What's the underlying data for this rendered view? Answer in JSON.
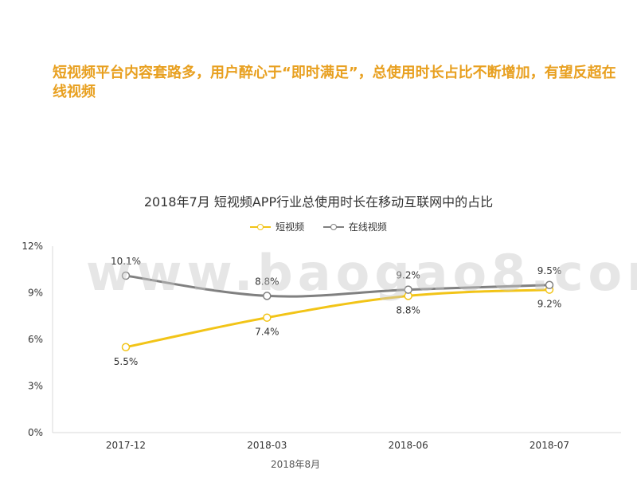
{
  "headline": "短视频平台内容套路多，用户醉心于“即时满足”，总使用时长占比不断增加，有望反超在线视频",
  "watermark": "www.baogao8.com",
  "source": "2018年8月",
  "colors": {
    "headline": "#e8a020",
    "short_video": "#f2c417",
    "online_video": "#808080"
  },
  "chart_data": {
    "type": "line",
    "title": "2018年7月 短视频APP行业总使用时长在移动互联网中的占比",
    "categories": [
      "2017-12",
      "2018-03",
      "2018-06",
      "2018-07"
    ],
    "series": [
      {
        "name": "短视频",
        "values": [
          5.5,
          7.4,
          8.8,
          9.2
        ],
        "labels": [
          "5.5%",
          "7.4%",
          "8.8%",
          "9.2%"
        ]
      },
      {
        "name": "在线视频",
        "values": [
          10.1,
          8.8,
          9.2,
          9.5
        ],
        "labels": [
          "10.1%",
          "8.8%",
          "9.2%",
          "9.5%"
        ]
      }
    ],
    "yticks": [
      "0%",
      "3%",
      "6%",
      "9%",
      "12%"
    ],
    "ylim": [
      0,
      12
    ],
    "unit": "%",
    "legend": "top-center",
    "grid": false
  }
}
